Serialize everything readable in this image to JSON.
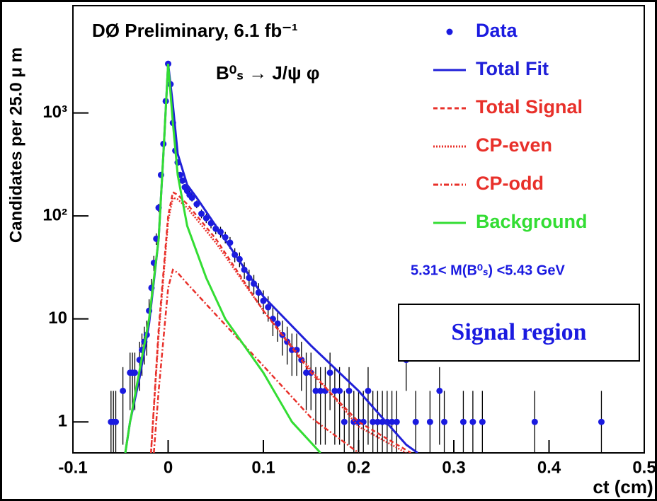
{
  "chart_data": {
    "type": "scatter",
    "log_y": true,
    "title": "DØ Preliminary, 6.1 fb⁻¹",
    "subtitle": "B⁰ₛ → J/ψ φ",
    "annotations": [
      "5.31< M(B⁰ₛ) <5.43 GeV",
      "Signal region"
    ],
    "xlabel": "ct  (cm)",
    "ylabel": "Candidates per 25.0 μ m",
    "xlim": [
      -0.1,
      0.5
    ],
    "xticks": [
      -0.1,
      0,
      0.1,
      0.2,
      0.3,
      0.4,
      0.5
    ],
    "ylim": [
      0.5,
      11000
    ],
    "yticks": [
      1,
      10,
      {
        "value": 100,
        "label": "10²"
      },
      {
        "value": 1000,
        "label": "10³"
      }
    ],
    "series": [
      {
        "name": "Data",
        "kind": "points",
        "color": "#1a1ae0",
        "x": [
          -0.06,
          -0.0575,
          -0.055,
          -0.0475,
          -0.04,
          -0.0375,
          -0.035,
          -0.03,
          -0.0275,
          -0.025,
          -0.0225,
          -0.02,
          -0.0175,
          -0.015,
          -0.0125,
          -0.01,
          -0.0075,
          -0.005,
          -0.0025,
          0,
          0.0025,
          0.005,
          0.0075,
          0.01,
          0.0125,
          0.015,
          0.0175,
          0.02,
          0.0225,
          0.025,
          0.03,
          0.035,
          0.04,
          0.045,
          0.05,
          0.055,
          0.06,
          0.065,
          0.07,
          0.075,
          0.08,
          0.085,
          0.09,
          0.095,
          0.1,
          0.105,
          0.11,
          0.115,
          0.12,
          0.125,
          0.13,
          0.135,
          0.14,
          0.145,
          0.15,
          0.155,
          0.16,
          0.165,
          0.17,
          0.175,
          0.18,
          0.185,
          0.19,
          0.195,
          0.2,
          0.205,
          0.21,
          0.215,
          0.22,
          0.225,
          0.23,
          0.235,
          0.24,
          0.25,
          0.26,
          0.275,
          0.285,
          0.29,
          0.31,
          0.32,
          0.33,
          0.385,
          0.455
        ],
        "values": [
          1,
          1,
          1,
          2,
          3,
          3,
          3,
          4,
          5,
          6,
          7,
          12,
          20,
          35,
          60,
          120,
          250,
          500,
          1300,
          3000,
          1900,
          800,
          430,
          330,
          250,
          220,
          190,
          175,
          160,
          150,
          130,
          105,
          95,
          85,
          75,
          70,
          62,
          55,
          42,
          38,
          30,
          25,
          22,
          18,
          15,
          13,
          10,
          9,
          7,
          6,
          5,
          5,
          4,
          3,
          3,
          2,
          2,
          2,
          3,
          2,
          2,
          1,
          2,
          1,
          1,
          1,
          2,
          1,
          1,
          1,
          1,
          1,
          1,
          4,
          1,
          1,
          2,
          1,
          1,
          1,
          1,
          1,
          1
        ],
        "errors": [
          1,
          1,
          1,
          1.4,
          1.7,
          1.7,
          1.7,
          2,
          2.2,
          2.4,
          2.6,
          3.5,
          4.5,
          5.9,
          7.7,
          11,
          16,
          22,
          36,
          55,
          44,
          28,
          21,
          18,
          16,
          15,
          14,
          13,
          13,
          12,
          11,
          10,
          9.7,
          9.2,
          8.7,
          8.4,
          7.9,
          7.4,
          6.5,
          6.2,
          5.5,
          5,
          4.7,
          4.2,
          3.9,
          3.6,
          3.2,
          3,
          2.6,
          2.4,
          2.2,
          2.2,
          2,
          1.7,
          1.7,
          1.4,
          1.4,
          1.4,
          1.7,
          1.4,
          1.4,
          1,
          1.4,
          1,
          1,
          1,
          1.4,
          1,
          1,
          1,
          1,
          1,
          1,
          2,
          1,
          1,
          1.4,
          1,
          1,
          1,
          1,
          1,
          1
        ]
      },
      {
        "name": "Total Fit",
        "kind": "line",
        "style": "solid",
        "color": "#2020d8",
        "x": [
          -0.045,
          -0.04,
          -0.03,
          -0.02,
          -0.01,
          -0.005,
          0,
          0.005,
          0.01,
          0.02,
          0.03,
          0.05,
          0.1,
          0.15,
          0.2,
          0.25,
          0.262
        ],
        "values": [
          0.5,
          1,
          2.7,
          9,
          60,
          400,
          3000,
          1200,
          400,
          200,
          150,
          80,
          16.5,
          5.5,
          2,
          0.6,
          0.5
        ]
      },
      {
        "name": "Total Signal",
        "kind": "line",
        "style": "dashed",
        "color": "#e8302a",
        "x": [
          -0.018,
          -0.01,
          0,
          0.005,
          0.01,
          0.02,
          0.05,
          0.1,
          0.15,
          0.2,
          0.255
        ],
        "values": [
          0.5,
          8,
          100,
          170,
          160,
          130,
          60,
          12,
          3,
          1,
          0.5
        ]
      },
      {
        "name": "CP-even",
        "kind": "line",
        "style": "dotted",
        "color": "#e8302a",
        "x": [
          -0.018,
          -0.01,
          0,
          0.005,
          0.01,
          0.02,
          0.05,
          0.1,
          0.15,
          0.2,
          0.25
        ],
        "values": [
          0.5,
          7,
          90,
          150,
          145,
          120,
          55,
          12,
          3.2,
          0.9,
          0.5
        ]
      },
      {
        "name": "CP-odd",
        "kind": "line",
        "style": "dashdot",
        "color": "#e8302a",
        "x": [
          -0.015,
          -0.01,
          0,
          0.005,
          0.01,
          0.02,
          0.05,
          0.1,
          0.15,
          0.2
        ],
        "values": [
          0.5,
          2,
          20,
          30,
          28,
          22,
          11,
          3.5,
          1.1,
          0.5
        ]
      },
      {
        "name": "Background",
        "kind": "line",
        "style": "solid",
        "color": "#33dd33",
        "x": [
          -0.045,
          -0.04,
          -0.02,
          -0.01,
          -0.005,
          0,
          0.005,
          0.01,
          0.02,
          0.04,
          0.06,
          0.1,
          0.13,
          0.16
        ],
        "values": [
          0.5,
          1,
          10,
          60,
          400,
          3000,
          800,
          250,
          80,
          25,
          10,
          3,
          1,
          0.5
        ]
      }
    ]
  }
}
